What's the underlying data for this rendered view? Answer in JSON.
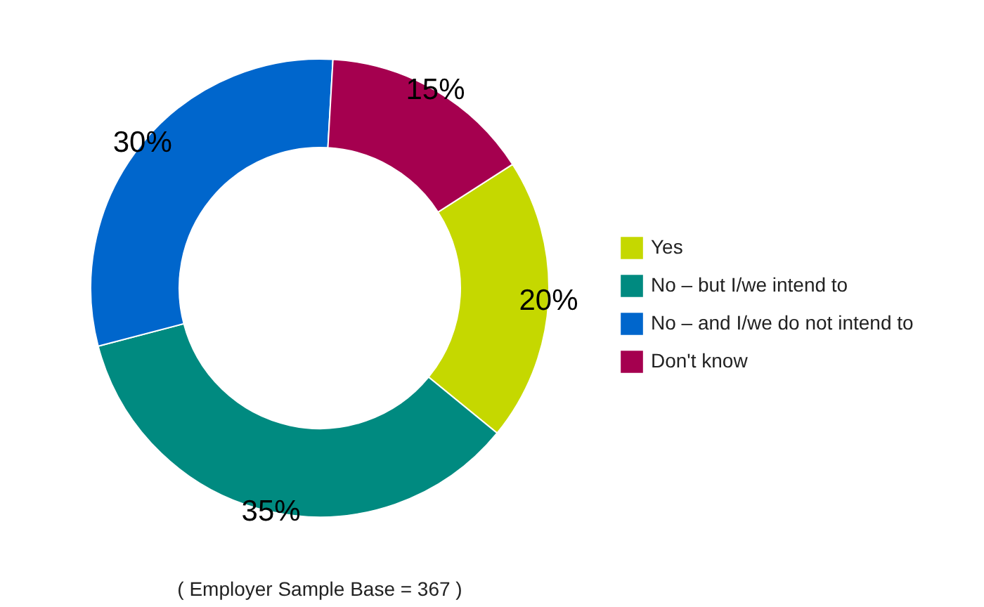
{
  "chart_data": {
    "type": "donut",
    "categories": [
      "Yes",
      "No – but I/we intend to",
      "No – and I/we do not intend to",
      "Don't know"
    ],
    "values": [
      20,
      35,
      30,
      15
    ],
    "colors": [
      "#c5d800",
      "#008a80",
      "#0066cc",
      "#a5004f"
    ],
    "value_labels": [
      "20%",
      "35%",
      "30%",
      "15%"
    ],
    "legend": "right",
    "annotations": [
      "( Employer Sample Base =  367 )"
    ]
  }
}
